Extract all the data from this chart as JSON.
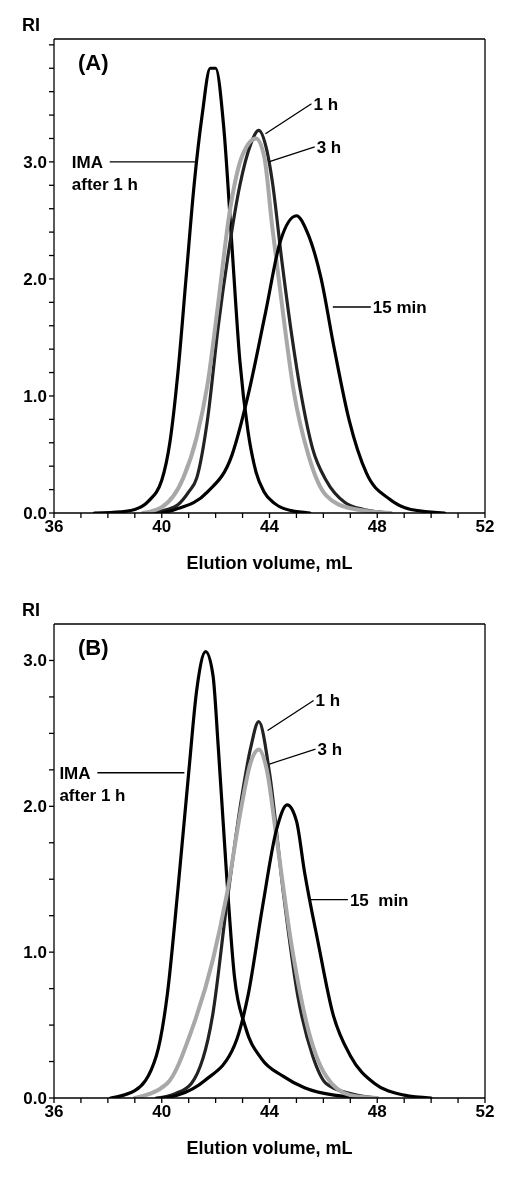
{
  "chart_data": [
    {
      "type": "line",
      "title": "(A)",
      "xlabel": "Elution volume, mL",
      "ylabel": "RI",
      "xlim": [
        36,
        52
      ],
      "xticks": [
        36,
        {
          "value": 37,
          "label": null
        },
        {
          "value": 38,
          "label": null
        },
        {
          "value": 39,
          "label": null
        },
        40,
        {
          "value": 41,
          "label": null
        },
        {
          "value": 42,
          "label": null
        },
        {
          "value": 43,
          "label": null
        },
        44,
        {
          "value": 45,
          "label": null
        },
        {
          "value": 46,
          "label": null
        },
        {
          "value": 47,
          "label": null
        },
        48,
        {
          "value": 49,
          "label": null
        },
        {
          "value": 50,
          "label": null
        },
        {
          "value": 51,
          "label": null
        },
        52
      ],
      "ylim": [
        0,
        4.05
      ],
      "yticks": [
        {
          "value": 0,
          "label": "0.0"
        },
        {
          "value": 0.2,
          "label": null
        },
        {
          "value": 0.4,
          "label": null
        },
        {
          "value": 0.6,
          "label": null
        },
        {
          "value": 0.8,
          "label": null
        },
        {
          "value": 1,
          "label": "1.0"
        },
        {
          "value": 1.2,
          "label": null
        },
        {
          "value": 1.4,
          "label": null
        },
        {
          "value": 1.6,
          "label": null
        },
        {
          "value": 1.8,
          "label": null
        },
        {
          "value": 2,
          "label": "2.0"
        },
        {
          "value": 2.2,
          "label": null
        },
        {
          "value": 2.4,
          "label": null
        },
        {
          "value": 2.6,
          "label": null
        },
        {
          "value": 2.8,
          "label": null
        },
        {
          "value": 3,
          "label": "3.0"
        },
        {
          "value": 3.2,
          "label": null
        },
        {
          "value": 3.4,
          "label": null
        },
        {
          "value": 3.6,
          "label": null
        },
        {
          "value": 3.8,
          "label": null
        },
        {
          "value": 4,
          "label": null
        }
      ],
      "series": [
        {
          "color": "#000000",
          "x": [
            37.5,
            38.5,
            39.0,
            39.5,
            40.0,
            40.3,
            40.6,
            40.9,
            41.2,
            41.5,
            41.8,
            42.0,
            42.3,
            42.6,
            42.9,
            43.2,
            43.5,
            43.8,
            44.2,
            44.8,
            45.5
          ],
          "values": [
            0,
            0.01,
            0.03,
            0.1,
            0.28,
            0.6,
            1.2,
            2.0,
            2.8,
            3.4,
            3.8,
            3.8,
            3.3,
            2.3,
            1.3,
            0.7,
            0.35,
            0.18,
            0.08,
            0.02,
            0
          ]
        },
        {
          "color": "#222222",
          "x": [
            39.5,
            40.2,
            40.6,
            41.0,
            41.3,
            41.7,
            42.1,
            42.5,
            42.9,
            43.3,
            43.6,
            43.9,
            44.1,
            44.45,
            44.8,
            45.2,
            45.6,
            46.1,
            46.8,
            47.5,
            48.5
          ],
          "values": [
            0,
            0.03,
            0.07,
            0.18,
            0.3,
            0.8,
            1.6,
            2.26,
            2.8,
            3.15,
            3.27,
            3.1,
            2.84,
            2.17,
            1.56,
            0.98,
            0.55,
            0.28,
            0.09,
            0.03,
            0
          ]
        },
        {
          "color": "#a8a8a8",
          "x": [
            39.3,
            40.0,
            40.8,
            41.3,
            41.7,
            42.1,
            42.5,
            43.0,
            43.5,
            43.8,
            44.1,
            44.5,
            44.9,
            45.45,
            46.1,
            47.0,
            48.5
          ],
          "values": [
            0,
            0.05,
            0.3,
            0.65,
            1.1,
            1.8,
            2.54,
            3.06,
            3.2,
            3.05,
            2.45,
            1.71,
            1.04,
            0.49,
            0.15,
            0.04,
            0
          ]
        },
        {
          "color": "#000000",
          "x": [
            40.0,
            40.5,
            41.7,
            42.6,
            43.2,
            43.85,
            44.4,
            45.0,
            45.4,
            45.9,
            46.4,
            46.95,
            47.6,
            48.45,
            49.25,
            50.5
          ],
          "values": [
            0,
            0.03,
            0.18,
            0.49,
            1.0,
            1.71,
            2.32,
            2.54,
            2.4,
            2.02,
            1.41,
            0.8,
            0.34,
            0.12,
            0.03,
            0
          ]
        }
      ],
      "annotations": [
        {
          "text": "IMA after 1 h",
          "x": 41.3,
          "y": 3.0
        },
        {
          "text": "1 h",
          "x": 43.85,
          "y": 3.24
        },
        {
          "text": "3 h",
          "x": 43.97,
          "y": 3.0
        },
        {
          "text": "15 min",
          "x": 46.35,
          "y": 1.76
        }
      ]
    },
    {
      "type": "line",
      "title": "(B)",
      "xlabel": "Elution volume, mL",
      "ylabel": "RI",
      "xlim": [
        36,
        52
      ],
      "xticks": [
        36,
        {
          "value": 37,
          "label": null
        },
        {
          "value": 38,
          "label": null
        },
        {
          "value": 39,
          "label": null
        },
        40,
        {
          "value": 41,
          "label": null
        },
        {
          "value": 42,
          "label": null
        },
        {
          "value": 43,
          "label": null
        },
        44,
        {
          "value": 45,
          "label": null
        },
        {
          "value": 46,
          "label": null
        },
        {
          "value": 47,
          "label": null
        },
        48,
        {
          "value": 49,
          "label": null
        },
        {
          "value": 50,
          "label": null
        },
        {
          "value": 51,
          "label": null
        },
        52
      ],
      "ylim": [
        0,
        3.25
      ],
      "yticks": [
        {
          "value": 0,
          "label": "0.0"
        },
        {
          "value": 0.25,
          "label": null
        },
        {
          "value": 0.5,
          "label": null
        },
        {
          "value": 0.75,
          "label": null
        },
        {
          "value": 1,
          "label": "1.0"
        },
        {
          "value": 1.25,
          "label": null
        },
        {
          "value": 1.5,
          "label": null
        },
        {
          "value": 1.75,
          "label": null
        },
        {
          "value": 2,
          "label": "2.0"
        },
        {
          "value": 2.25,
          "label": null
        },
        {
          "value": 2.5,
          "label": null
        },
        {
          "value": 2.75,
          "label": null
        },
        {
          "value": 3,
          "label": "3.0"
        }
      ],
      "series": [
        {
          "color": "#000000",
          "x": [
            38.1,
            39.0,
            39.8,
            40.2,
            40.6,
            41.0,
            41.3,
            41.63,
            41.9,
            42.1,
            42.4,
            42.7,
            43.1,
            43.7,
            44.5,
            45.3,
            46.4,
            48.0
          ],
          "values": [
            0,
            0.05,
            0.29,
            0.7,
            1.43,
            2.23,
            2.8,
            3.06,
            2.9,
            2.4,
            1.55,
            0.83,
            0.49,
            0.27,
            0.15,
            0.07,
            0.02,
            0
          ]
        },
        {
          "color": "#222222",
          "x": [
            39.8,
            40.5,
            41.1,
            41.9,
            42.4,
            42.95,
            43.3,
            43.6,
            44.0,
            44.5,
            45.05,
            45.6,
            46.1,
            47.0,
            48.0
          ],
          "values": [
            0,
            0.03,
            0.1,
            0.58,
            1.31,
            2.04,
            2.4,
            2.58,
            2.23,
            1.43,
            0.7,
            0.29,
            0.1,
            0.03,
            0
          ]
        },
        {
          "color": "#a8a8a8",
          "x": [
            39.0,
            40.2,
            41.1,
            41.9,
            42.4,
            42.95,
            43.3,
            43.6,
            43.9,
            44.25,
            44.8,
            45.45,
            46.1,
            47.0,
            48.0
          ],
          "values": [
            0,
            0.1,
            0.46,
            0.95,
            1.38,
            1.99,
            2.3,
            2.39,
            2.25,
            1.8,
            1.07,
            0.46,
            0.15,
            0.02,
            0
          ]
        },
        {
          "color": "#000000",
          "x": [
            40.0,
            40.6,
            41.6,
            42.7,
            43.2,
            43.74,
            44.26,
            44.66,
            45.0,
            45.3,
            45.8,
            46.35,
            47.0,
            47.9,
            49.0,
            50.0
          ],
          "values": [
            0,
            0.02,
            0.12,
            0.36,
            0.7,
            1.31,
            1.84,
            2.01,
            1.9,
            1.55,
            1.07,
            0.58,
            0.29,
            0.1,
            0.02,
            0
          ]
        }
      ],
      "annotations": [
        {
          "text": "IMA after 1 h",
          "x": 40.84,
          "y": 2.23
        },
        {
          "text": "1 h",
          "x": 43.93,
          "y": 2.52
        },
        {
          "text": "3 h",
          "x": 44.0,
          "y": 2.29
        },
        {
          "text": "15  min",
          "x": 45.5,
          "y": 1.36
        }
      ]
    }
  ]
}
